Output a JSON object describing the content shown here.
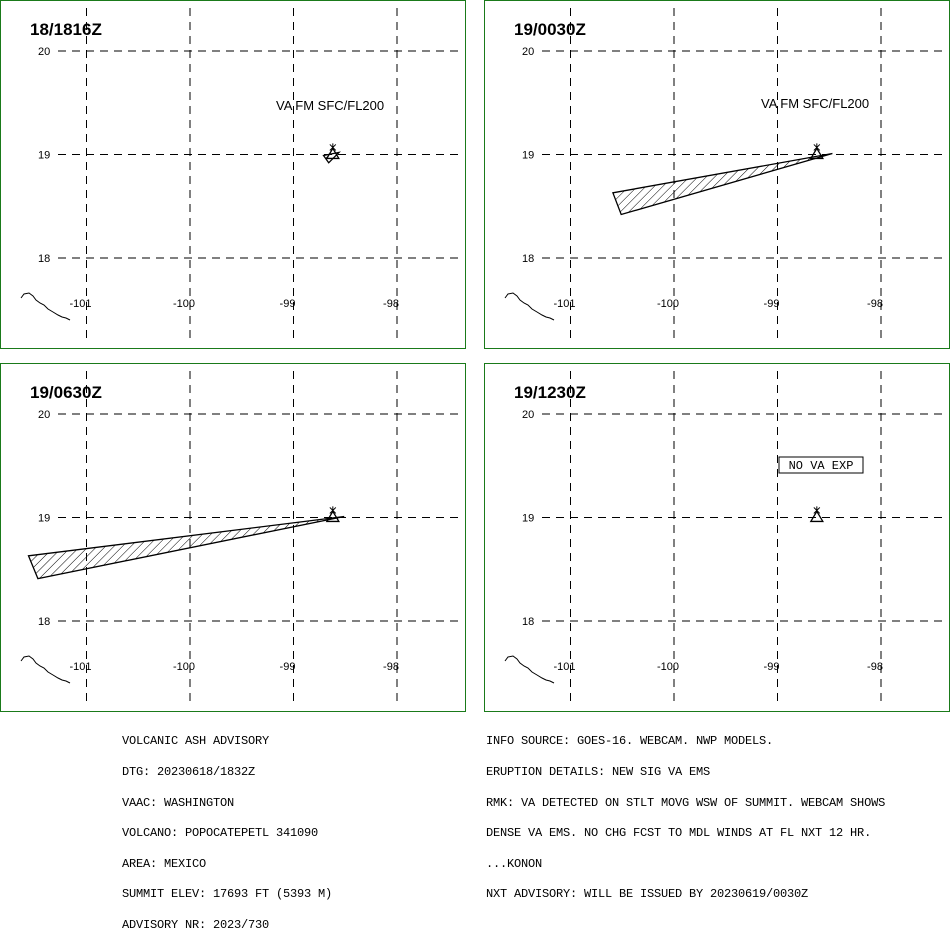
{
  "panels": [
    {
      "time": "18/1816Z",
      "label": "VA FM SFC/FL200",
      "lat_ticks": [
        "20",
        "19",
        "18"
      ],
      "lon_ticks": [
        "-101",
        "-100",
        "-99",
        "-98"
      ],
      "ash_polygon": [
        [
          -98.71,
          18.99
        ],
        [
          -98.56,
          19.02
        ],
        [
          -98.66,
          18.92
        ]
      ]
    },
    {
      "time": "19/0030Z",
      "label": "VA FM SFC/FL200",
      "lat_ticks": [
        "20",
        "19",
        "18"
      ],
      "lon_ticks": [
        "-101",
        "-100",
        "-99",
        "-98"
      ],
      "ash_polygon": [
        [
          -100.59,
          18.63
        ],
        [
          -98.47,
          19.01
        ],
        [
          -100.51,
          18.42
        ]
      ]
    },
    {
      "time": "19/0630Z",
      "label": "",
      "lat_ticks": [
        "20",
        "19",
        "18"
      ],
      "lon_ticks": [
        "-101",
        "-100",
        "-99",
        "-98"
      ],
      "ash_polygon": [
        [
          -101.56,
          18.63
        ],
        [
          -98.51,
          19.01
        ],
        [
          -101.47,
          18.41
        ]
      ]
    },
    {
      "time": "19/1230Z",
      "label": "NO VA EXP",
      "lat_ticks": [
        "20",
        "19",
        "18"
      ],
      "lon_ticks": [
        "-101",
        "-100",
        "-99",
        "-98"
      ],
      "ash_polygon": []
    }
  ],
  "volcano": {
    "name": "POPOCATEPETL",
    "lon": -98.62,
    "lat": 19.02,
    "icon": "volcano-triangle-icon"
  },
  "advisory_left": [
    "VOLCANIC ASH ADVISORY",
    "DTG: 20230618/1832Z",
    "VAAC: WASHINGTON",
    "VOLCANO: POPOCATEPETL 341090",
    "AREA: MEXICO",
    "SUMMIT ELEV: 17693 FT (5393 M)",
    "ADVISORY NR: 2023/730"
  ],
  "advisory_right": [
    "INFO SOURCE: GOES-16. WEBCAM. NWP MODELS.",
    "ERUPTION DETAILS: NEW SIG VA EMS",
    "RMK: VA DETECTED ON STLT MOVG WSW OF SUMMIT. WEBCAM SHOWS",
    "DENSE VA EMS. NO CHG FCST TO MDL WINDS AT FL NXT 12 HR.",
    "...KONON",
    "NXT ADVISORY: WILL BE ISSUED BY 20230619/0030Z"
  ],
  "colors": {
    "frame": "#1a7a1a",
    "grid": "#000000",
    "ink": "#000000"
  }
}
